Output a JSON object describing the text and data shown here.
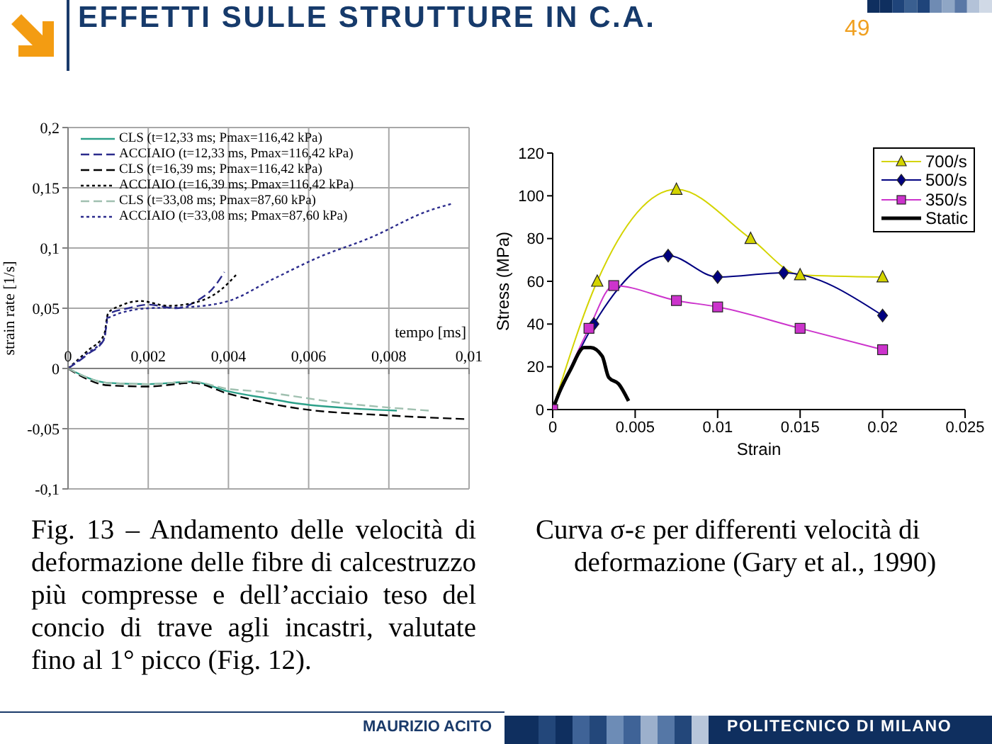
{
  "chart_data": [
    {
      "type": "line",
      "title": "EFFETTI SULLE STRUTTURE IN C.A.",
      "xlabel": "tempo [ms]",
      "ylabel": "strain rate [1/s]",
      "xlim": [
        0,
        0.01
      ],
      "xticks": [
        0,
        {
          "value": 0.002,
          "label": "0,002"
        },
        {
          "value": 0.004,
          "label": "0,004"
        },
        {
          "value": 0.006,
          "label": "0,006"
        },
        {
          "value": 0.008,
          "label": "0,008"
        },
        {
          "value": 0.01,
          "label": "0,01"
        }
      ],
      "ylim": [
        -0.1,
        0.2
      ],
      "yticks": [
        {
          "value": -0.1,
          "label": "-0,1"
        },
        {
          "value": -0.05,
          "label": "-0,05"
        },
        0,
        {
          "value": 0.05,
          "label": "0,05"
        },
        {
          "value": 0.1,
          "label": "0,1"
        },
        {
          "value": 0.15,
          "label": "0,15"
        },
        {
          "value": 0.2,
          "label": "0,2"
        }
      ],
      "grid": true,
      "legend": "top left",
      "marker": "none",
      "series": [
        {
          "name": "CLS (t=12,33 ms; Pmax=116,42 kPa)",
          "color": "#2ca089",
          "line_style": "solid",
          "x": [
            0,
            0.001,
            0.002,
            0.0031,
            0.004,
            0.005,
            0.0057,
            0.007,
            0.0082
          ],
          "values": [
            0,
            -0.012,
            -0.013,
            -0.011,
            -0.019,
            -0.025,
            -0.029,
            -0.033,
            -0.035
          ]
        },
        {
          "name": "ACCIAIO (t=12,33 ms, Pmax=116,42 kPa)",
          "color": "#2b2b8c",
          "line_style": "dashed",
          "x": [
            0,
            0.0005,
            0.0009,
            0.001,
            0.0015,
            0.002,
            0.0027,
            0.0033,
            0.0036,
            0.0039
          ],
          "values": [
            0,
            0.012,
            0.024,
            0.045,
            0.05,
            0.053,
            0.05,
            0.058,
            0.066,
            0.08
          ]
        },
        {
          "name": "CLS (t=16,39 ms; Pmax=116,42 kPa)",
          "color": "#000000",
          "line_style": "dashed",
          "x": [
            0,
            0.001,
            0.002,
            0.0031,
            0.004,
            0.0057,
            0.008,
            0.0099
          ],
          "values": [
            0,
            -0.014,
            -0.015,
            -0.012,
            -0.021,
            -0.033,
            -0.039,
            -0.042
          ]
        },
        {
          "name": "ACCIAIO (t=16,39 ms; Pmax=116,42 kPa)",
          "color": "#000000",
          "line_style": "dotted",
          "x": [
            0,
            0.0005,
            0.0009,
            0.001,
            0.0013,
            0.0018,
            0.0025,
            0.0032,
            0.0038,
            0.0042
          ],
          "values": [
            0,
            0.015,
            0.028,
            0.046,
            0.052,
            0.056,
            0.052,
            0.055,
            0.065,
            0.078
          ]
        },
        {
          "name": "CLS (t=33,08 ms; Pmax=87,60 kPa)",
          "color": "#a0c0b0",
          "line_style": "dashed",
          "x": [
            0,
            0.001,
            0.002,
            0.0031,
            0.004,
            0.0047,
            0.0069,
            0.009
          ],
          "values": [
            0,
            -0.012,
            -0.013,
            -0.011,
            -0.017,
            -0.019,
            -0.029,
            -0.035
          ]
        },
        {
          "name": "ACCIAIO (t=33,08 ms; Pmax=87,60 kPa)",
          "color": "#2b2b8c",
          "line_style": "dotted",
          "x": [
            0,
            0.0005,
            0.0009,
            0.001,
            0.002,
            0.003,
            0.004,
            0.0051,
            0.0063,
            0.0075,
            0.009,
            0.0096
          ],
          "values": [
            0,
            0.013,
            0.025,
            0.042,
            0.05,
            0.051,
            0.056,
            0.074,
            0.093,
            0.108,
            0.131,
            0.137
          ]
        }
      ],
      "annotations": [
        "Fig. 13 – Andamento delle velocità di deformazione delle fibre di calcestruzzo più compresse e dell’acciaio teso del concio di trave agli incastri, valutate fino al 1° picco (Fig. 12).",
        "49",
        "MAURIZIO ACITO",
        "POLITECNICO DI MILANO"
      ]
    },
    {
      "type": "line",
      "xlabel": "Strain",
      "ylabel": "Stress (MPa)",
      "xlim": [
        0,
        0.025
      ],
      "xticks": [
        0,
        0.005,
        0.01,
        0.015,
        0.02,
        0.025
      ],
      "ylim": [
        0,
        120
      ],
      "yticks": [
        0,
        20,
        40,
        60,
        80,
        100,
        120
      ],
      "legend": "top right",
      "series": [
        {
          "name": "700/s",
          "color": "#d4d400",
          "marker": "triangle",
          "x": [
            0,
            0.0027,
            0.0075,
            0.012,
            0.015,
            0.02
          ],
          "values": [
            0,
            60,
            103,
            80,
            63,
            62
          ]
        },
        {
          "name": "500/s",
          "color": "#000080",
          "marker": "diamond",
          "x": [
            0,
            0.0025,
            0.007,
            0.01,
            0.014,
            0.02
          ],
          "values": [
            0,
            40,
            72,
            62,
            64,
            44
          ]
        },
        {
          "name": "350/s",
          "color": "#cc33cc",
          "marker": "square",
          "x": [
            0,
            0.0022,
            0.0037,
            0.0075,
            0.01,
            0.015,
            0.02
          ],
          "values": [
            0,
            38,
            58,
            51,
            48,
            38,
            28
          ]
        },
        {
          "name": "Static",
          "color": "#000000",
          "marker": "none",
          "x": [
            0,
            0.0004,
            0.0011,
            0.0019,
            0.0023,
            0.003,
            0.0034,
            0.004,
            0.0046
          ],
          "values": [
            0,
            8,
            19,
            29,
            29,
            25,
            15,
            12,
            4
          ]
        }
      ],
      "annotations": [
        "Curva σ-ε per differenti velocità di deformazione (Gary et al., 1990)"
      ]
    }
  ]
}
